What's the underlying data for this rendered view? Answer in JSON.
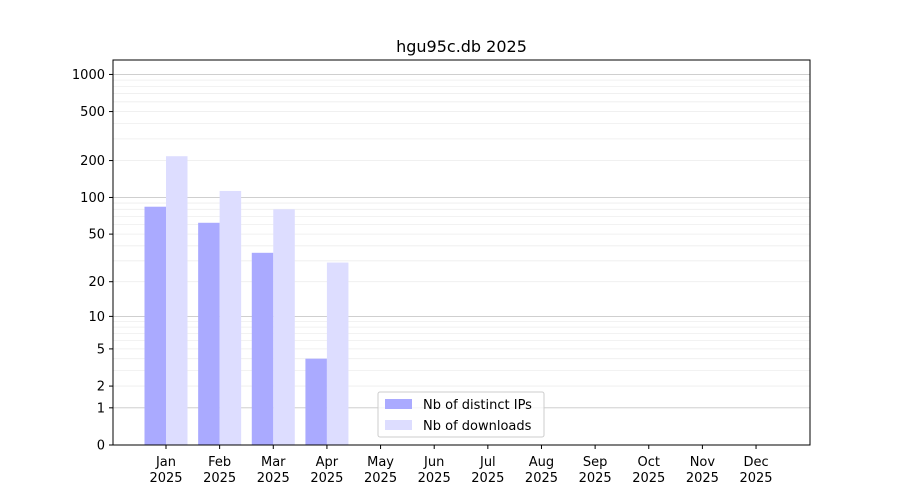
{
  "chart_data": {
    "type": "bar",
    "title": "hgu95c.db 2025",
    "xlabel": "",
    "ylabel": "",
    "yscale": "log(1+x)",
    "ylim": [
      0,
      1300
    ],
    "yticks": [
      0,
      1,
      2,
      5,
      10,
      20,
      50,
      100,
      200,
      500,
      1000
    ],
    "grid": true,
    "legend_position": "bottom-center",
    "categories": [
      "Jan\n2025",
      "Feb\n2025",
      "Mar\n2025",
      "Apr\n2025",
      "May\n2025",
      "Jun\n2025",
      "Jul\n2025",
      "Aug\n2025",
      "Sep\n2025",
      "Oct\n2025",
      "Nov\n2025",
      "Dec\n2025"
    ],
    "series": [
      {
        "name": "Nb of distinct IPs",
        "color": "#aaaaff",
        "values": [
          84,
          62,
          35,
          4,
          0,
          0,
          0,
          0,
          0,
          0,
          0,
          0
        ]
      },
      {
        "name": "Nb of downloads",
        "color": "#ddddff",
        "values": [
          217,
          113,
          80,
          29,
          0,
          0,
          0,
          0,
          0,
          0,
          0,
          0
        ]
      }
    ]
  }
}
